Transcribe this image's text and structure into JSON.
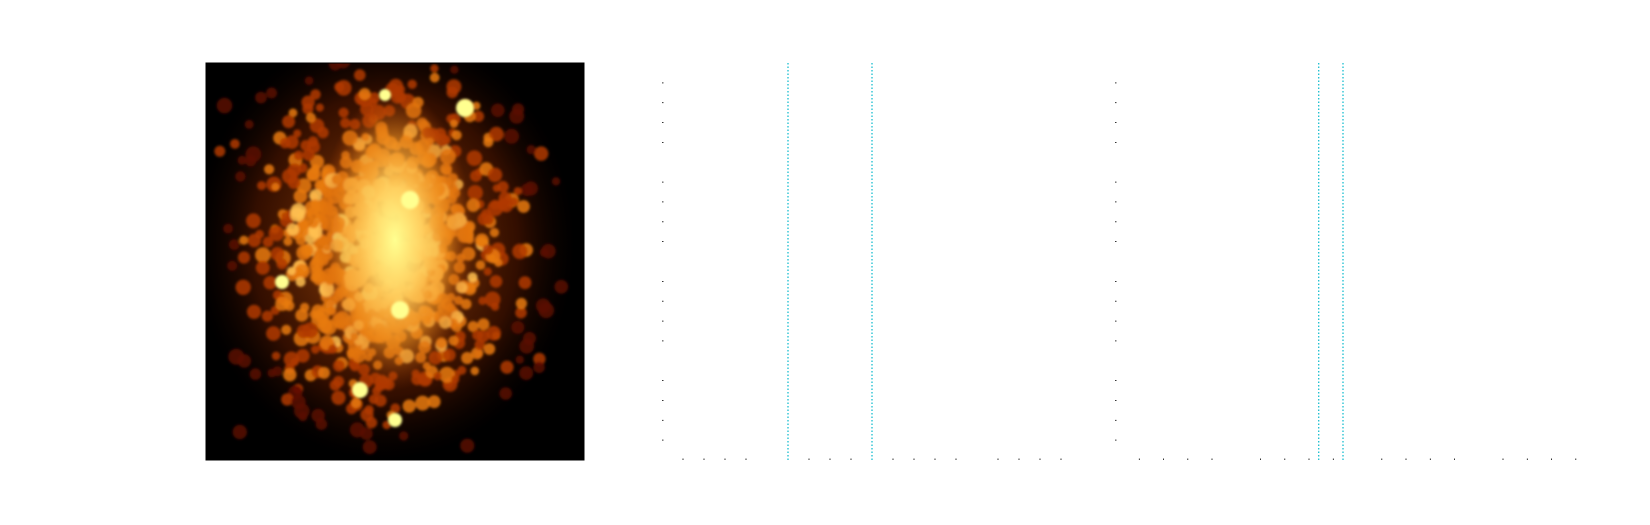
{
  "figure": {
    "background": "#ffffff"
  },
  "chart_data": [
    {
      "type": "heatmap",
      "title": "",
      "xlabel": "",
      "ylabel": "",
      "colormap": "afmhot",
      "background_color": "#000000",
      "colormap_stops": [
        "#000000",
        "#5a0a00",
        "#b03a00",
        "#e87a10",
        "#ffc050",
        "#ffff90"
      ],
      "grid": false
    },
    {
      "type": "line",
      "title": "",
      "xlabel": "",
      "ylabel": "",
      "xlim": [
        0,
        1
      ],
      "ylim": [
        0,
        1
      ],
      "grid": false,
      "tick_labels_visible": false,
      "vertical_lines": {
        "x": [
          0.3,
          0.5
        ],
        "color": "#17becf",
        "style": "dotted"
      }
    },
    {
      "type": "line",
      "title": "",
      "xlabel": "",
      "ylabel": "",
      "xlim": [
        0,
        1
      ],
      "ylim": [
        0,
        1
      ],
      "grid": false,
      "tick_labels_visible": false,
      "vertical_lines": {
        "x": [
          0.42,
          0.47
        ],
        "color": "#17becf",
        "style": "dotted"
      }
    }
  ]
}
